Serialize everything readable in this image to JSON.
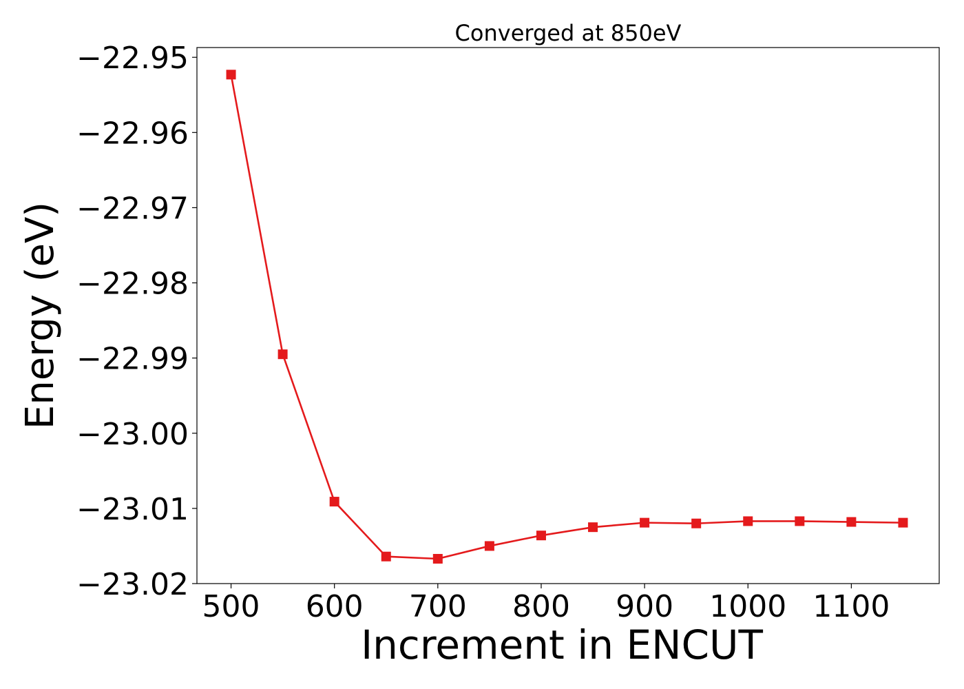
{
  "chart_data": {
    "type": "line",
    "title": "Converged at 850eV",
    "xlabel": "Increment in ENCUT",
    "ylabel": "Energy (eV)",
    "x": [
      500,
      550,
      600,
      650,
      700,
      750,
      800,
      850,
      900,
      950,
      1000,
      1050,
      1100,
      1150
    ],
    "series": [
      {
        "values": [
          -22.9523,
          -22.9895,
          -23.0091,
          -23.0164,
          -23.0167,
          -23.015,
          -23.0136,
          -23.0125,
          -23.0119,
          -23.012,
          -23.0117,
          -23.0117,
          -23.0118,
          -23.0119
        ],
        "color": "#e41a1c",
        "marker": "square"
      }
    ],
    "xlim": [
      467,
      1185
    ],
    "ylim": [
      -23.02,
      -22.9487
    ],
    "xticks": [
      500,
      600,
      700,
      800,
      900,
      1000,
      1100
    ],
    "xtick_labels": [
      "500",
      "600",
      "700",
      "800",
      "900",
      "1000",
      "1100"
    ],
    "yticks": [
      -22.95,
      -22.96,
      -22.97,
      -22.98,
      -22.99,
      -23.0,
      -23.01,
      -23.02
    ],
    "ytick_labels": [
      "−22.95",
      "−22.96",
      "−22.97",
      "−22.98",
      "−22.99",
      "−23.00",
      "−23.01",
      "−23.02"
    ],
    "grid": false,
    "legend": false
  }
}
